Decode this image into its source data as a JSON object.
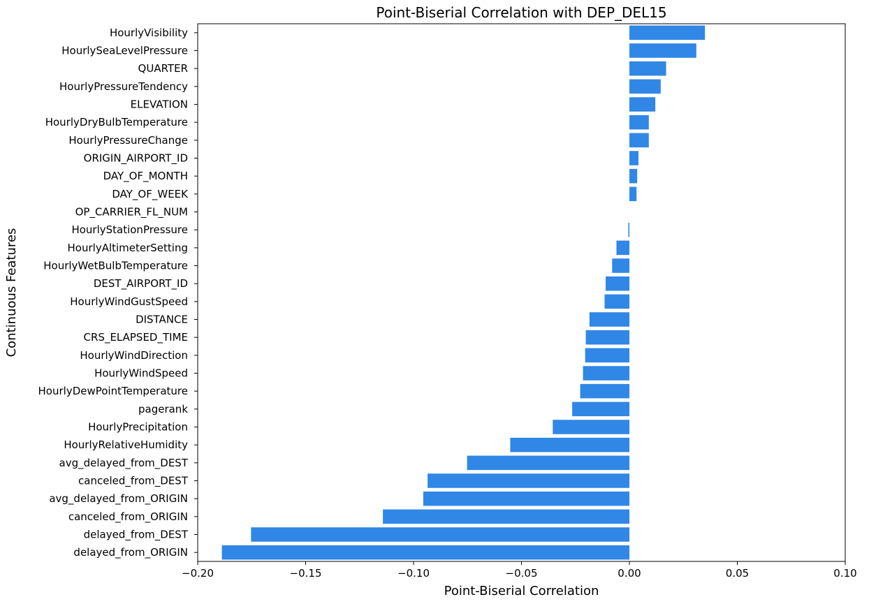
{
  "chart_data": {
    "type": "bar",
    "orientation": "horizontal",
    "title": "Point-Biserial Correlation with DEP_DEL15",
    "xlabel": "Point-Biserial Correlation",
    "ylabel": "Continuous Features",
    "xlim": [
      -0.2,
      0.1
    ],
    "xticks": [
      -0.2,
      -0.15,
      -0.1,
      -0.05,
      0.0,
      0.05,
      0.1
    ],
    "xtick_labels": [
      "−0.20",
      "−0.15",
      "−0.10",
      "−0.05",
      "0.00",
      "0.05",
      "0.10"
    ],
    "grid": false,
    "bar_color": "#3087e6",
    "categories": [
      "HourlyVisibility",
      "HourlySeaLevelPressure",
      "QUARTER",
      "HourlyPressureTendency",
      "ELEVATION",
      "HourlyDryBulbTemperature",
      "HourlyPressureChange",
      "ORIGIN_AIRPORT_ID",
      "DAY_OF_MONTH",
      "DAY_OF_WEEK",
      "OP_CARRIER_FL_NUM",
      "HourlyStationPressure",
      "HourlyAltimeterSetting",
      "HourlyWetBulbTemperature",
      "DEST_AIRPORT_ID",
      "HourlyWindGustSpeed",
      "DISTANCE",
      "CRS_ELAPSED_TIME",
      "HourlyWindDirection",
      "HourlyWindSpeed",
      "HourlyDewPointTemperature",
      "pagerank",
      "HourlyPrecipitation",
      "HourlyRelativeHumidity",
      "avg_delayed_from_DEST",
      "canceled_from_DEST",
      "avg_delayed_from_ORIGIN",
      "canceled_from_ORIGIN",
      "delayed_from_DEST",
      "delayed_from_ORIGIN"
    ],
    "values": [
      0.035,
      0.031,
      0.017,
      0.0145,
      0.012,
      0.009,
      0.009,
      0.0042,
      0.0036,
      0.0033,
      0.0,
      -0.0005,
      -0.006,
      -0.008,
      -0.011,
      -0.0115,
      -0.0185,
      -0.0202,
      -0.0205,
      -0.0215,
      -0.0228,
      -0.0265,
      -0.0355,
      -0.0552,
      -0.0752,
      -0.0935,
      -0.0955,
      -0.1142,
      -0.1753,
      -0.1888
    ]
  }
}
